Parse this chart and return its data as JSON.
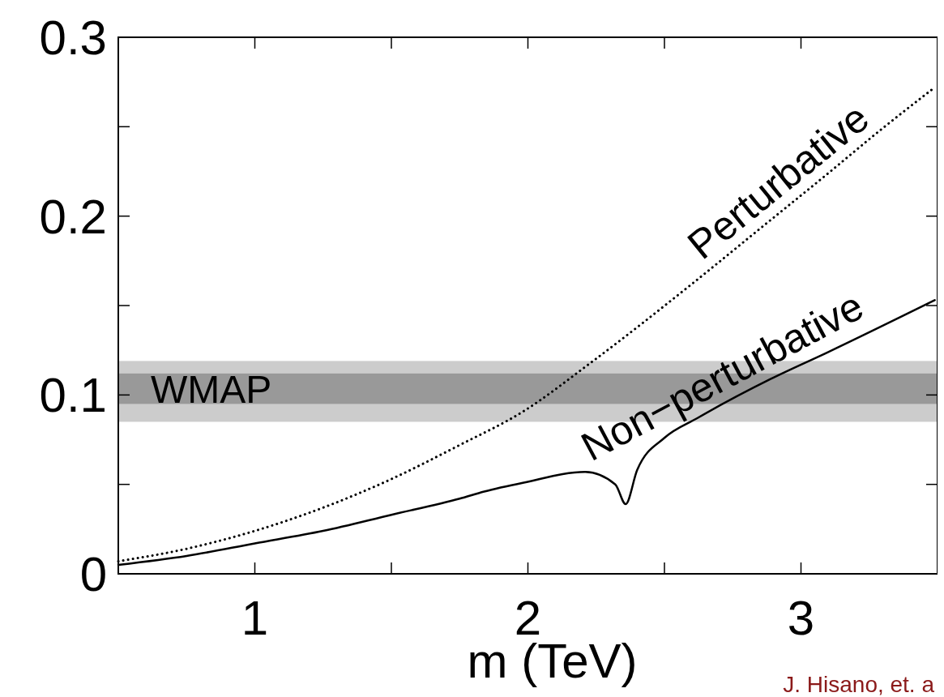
{
  "chart_data": {
    "type": "line",
    "xlabel": "m (TeV)",
    "xlim": [
      0.5,
      3.5
    ],
    "ylim": [
      0,
      0.3
    ],
    "xticks": [
      {
        "value": 1,
        "label": "1"
      },
      {
        "value": 1.5,
        "label": null
      },
      {
        "value": 2,
        "label": "2"
      },
      {
        "value": 2.5,
        "label": null
      },
      {
        "value": 3,
        "label": "3"
      }
    ],
    "yticks": [
      {
        "value": 0,
        "label": "0"
      },
      {
        "value": 0.05,
        "label": null
      },
      {
        "value": 0.1,
        "label": "0.1"
      },
      {
        "value": 0.15,
        "label": null
      },
      {
        "value": 0.2,
        "label": "0.2"
      },
      {
        "value": 0.25,
        "label": null
      },
      {
        "value": 0.3,
        "label": "0.3"
      }
    ],
    "grid": false,
    "series": [
      {
        "name": "Perturbative",
        "color": "#000000",
        "line_style": "dotted",
        "x": [
          0.5,
          0.75,
          1.0,
          1.25,
          1.5,
          1.75,
          1.985,
          2.23,
          2.6,
          2.85,
          3.1,
          3.29,
          3.49
        ],
        "values": [
          0.007,
          0.014,
          0.024,
          0.037,
          0.053,
          0.072,
          0.091,
          0.118,
          0.162,
          0.193,
          0.224,
          0.248,
          0.272
        ]
      },
      {
        "name": "Non−perturbative",
        "color": "#000000",
        "line_style": "solid",
        "x": [
          0.5,
          0.75,
          1.0,
          1.25,
          1.5,
          1.75,
          1.84,
          1.985,
          2.21,
          2.32,
          2.358,
          2.4,
          2.5,
          2.62,
          2.89,
          3.1,
          3.49
        ],
        "values": [
          0.005,
          0.01,
          0.017,
          0.024,
          0.033,
          0.042,
          0.046,
          0.051,
          0.057,
          0.05,
          0.039,
          0.058,
          0.076,
          0.087,
          0.109,
          0.124,
          0.153
        ]
      }
    ],
    "bands": [
      {
        "axis": "y",
        "from": 0.085,
        "to": 0.119,
        "color": "#cccccc"
      },
      {
        "axis": "y",
        "from": 0.095,
        "to": 0.112,
        "color": "#999999",
        "label": "WMAP"
      }
    ],
    "annotations": [
      "J. Hisano, et. a"
    ]
  }
}
